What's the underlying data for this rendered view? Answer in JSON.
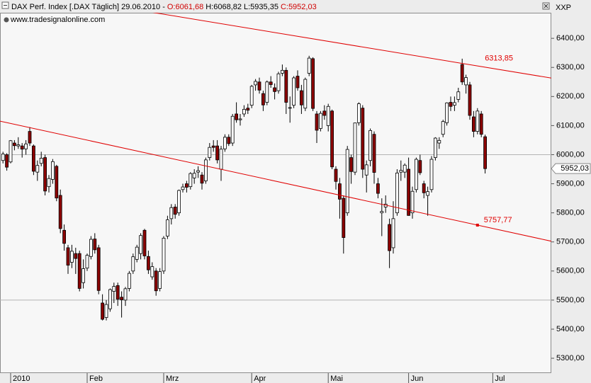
{
  "header": {
    "instrument": "DAX Perf. Index [.DAX  Täglich] 29.06.2010 -",
    "open": "O:6061,68",
    "high": "H:6068,82",
    "low": "L:5935,35",
    "close": "C:5952,03",
    "source": "www.tradesignalonline.com",
    "axis_label": "XXP"
  },
  "chart_data": {
    "type": "candlestick",
    "categories": [
      null,
      null,
      "2010",
      null,
      null,
      null,
      null,
      null,
      null,
      null,
      null,
      null,
      null,
      null,
      null,
      null,
      null,
      null,
      null,
      null,
      null,
      null,
      "Feb",
      null,
      null,
      null,
      null,
      null,
      null,
      null,
      null,
      null,
      null,
      null,
      null,
      null,
      null,
      null,
      null,
      null,
      null,
      null,
      "Mrz",
      null,
      null,
      null,
      null,
      null,
      null,
      null,
      null,
      null,
      null,
      null,
      null,
      null,
      null,
      null,
      null,
      null,
      null,
      null,
      null,
      null,
      null,
      "Apr",
      null,
      null,
      null,
      null,
      null,
      null,
      null,
      null,
      null,
      null,
      null,
      null,
      null,
      null,
      null,
      null,
      null,
      null,
      null,
      "Mai",
      null,
      null,
      null,
      null,
      null,
      null,
      null,
      null,
      null,
      null,
      null,
      null,
      null,
      null,
      null,
      null,
      null,
      null,
      null,
      null,
      "Jun",
      null,
      null,
      null,
      null,
      null,
      null,
      null,
      null,
      null,
      null,
      null,
      null,
      null,
      null,
      null,
      null,
      null,
      null,
      null,
      null,
      null,
      "Jul"
    ],
    "open": [
      5980,
      6000,
      5975,
      6040,
      6030,
      6030,
      6020,
      6080,
      6030,
      5940,
      5970,
      5990,
      5890,
      5915,
      5960,
      5860,
      5740,
      5680,
      5630,
      5660,
      5660,
      5560,
      5610,
      5650,
      5710,
      5680,
      5490,
      5440,
      5470,
      5530,
      5550,
      5510,
      5500,
      5540,
      5600,
      5640,
      5660,
      5740,
      5650,
      5580,
      5600,
      5540,
      5600,
      5720,
      5780,
      5820,
      5800,
      5880,
      5900,
      5890,
      5920,
      5940,
      5930,
      5910,
      5990,
      6030,
      6030,
      5950,
      6020,
      6060,
      6040,
      6140,
      6120,
      6140,
      6160,
      6170,
      6240,
      6250,
      6210,
      6180,
      6250,
      6230,
      6220,
      6280,
      6290,
      6160,
      6170,
      6270,
      6220,
      6160,
      6280,
      6330,
      6140,
      6090,
      6150,
      6100,
      6150,
      5950,
      5900,
      5850,
      5800,
      5990,
      5940,
      6110,
      6160,
      5930,
      5980,
      6070,
      5900,
      5800,
      5820,
      5760,
      5680,
      5800,
      5940,
      5940,
      5950,
      5800,
      5880,
      5980,
      5900,
      5860,
      5880,
      5990,
      6040,
      6070,
      6110,
      6180,
      6170,
      6190,
      6310,
      6240,
      6240,
      6130,
      6080,
      6140,
      6061.68,
      null,
      null
    ],
    "high": [
      6010,
      6005,
      6050,
      6050,
      6060,
      6040,
      6050,
      6095,
      6035,
      5980,
      6010,
      6000,
      5930,
      5985,
      5965,
      5880,
      5760,
      5690,
      5690,
      5680,
      5670,
      5640,
      5660,
      5720,
      5730,
      5690,
      5520,
      5500,
      5540,
      5560,
      5560,
      5530,
      5545,
      5600,
      5660,
      5690,
      5730,
      5745,
      5670,
      5630,
      5610,
      5610,
      5720,
      5790,
      5830,
      5830,
      5880,
      5900,
      5910,
      5940,
      5950,
      5960,
      5940,
      5990,
      6040,
      6050,
      6050,
      6030,
      6070,
      6070,
      6140,
      6180,
      6140,
      6170,
      6175,
      6240,
      6260,
      6265,
      6220,
      6255,
      6270,
      6245,
      6285,
      6310,
      6300,
      6200,
      6270,
      6290,
      6240,
      6265,
      6340,
      6335,
      6150,
      6150,
      6170,
      6175,
      6155,
      5960,
      5920,
      5860,
      6030,
      6000,
      6110,
      6180,
      6170,
      5980,
      6090,
      6080,
      5920,
      5850,
      5860,
      5780,
      5840,
      5950,
      5980,
      5970,
      5990,
      5890,
      5990,
      6000,
      5910,
      5890,
      5995,
      6060,
      6060,
      6120,
      6180,
      6200,
      6200,
      6230,
      6330,
      6275,
      6250,
      6150,
      6160,
      6150,
      6068.82,
      null,
      null
    ],
    "low": [
      5970,
      5945,
      5970,
      6015,
      6020,
      5990,
      6000,
      6030,
      5930,
      5910,
      5960,
      5860,
      5870,
      5900,
      5840,
      5730,
      5670,
      5590,
      5610,
      5590,
      5530,
      5540,
      5600,
      5640,
      5660,
      5520,
      5430,
      5430,
      5460,
      5490,
      5480,
      5440,
      5480,
      5530,
      5590,
      5630,
      5640,
      5640,
      5590,
      5570,
      5515,
      5530,
      5590,
      5710,
      5760,
      5780,
      5790,
      5870,
      5870,
      5880,
      5900,
      5920,
      5880,
      5900,
      5980,
      6010,
      5970,
      5910,
      6010,
      6030,
      6030,
      6110,
      6100,
      6130,
      6140,
      6160,
      6220,
      6210,
      6150,
      6170,
      6230,
      6190,
      6210,
      6270,
      6140,
      6110,
      6160,
      6220,
      6140,
      6150,
      6270,
      6150,
      6040,
      6080,
      6120,
      6080,
      5950,
      5880,
      5780,
      5660,
      5790,
      5900,
      5930,
      6100,
      5920,
      5870,
      5960,
      5900,
      5850,
      5720,
      5800,
      5610,
      5660,
      5790,
      5910,
      5920,
      5790,
      5780,
      5870,
      5930,
      5850,
      5790,
      5870,
      5980,
      6020,
      6060,
      6100,
      6150,
      6150,
      6180,
      6240,
      6210,
      6120,
      6060,
      6070,
      6060,
      5935.35,
      null,
      null
    ],
    "close": [
      6002,
      5957,
      6048,
      6031,
      6034,
      6019,
      6037,
      6040,
      5943,
      5963,
      5988,
      5875,
      5918,
      5976,
      5851,
      5746,
      5695,
      5620,
      5668,
      5643,
      5540,
      5608,
      5654,
      5709,
      5673,
      5533,
      5434,
      5485,
      5536,
      5547,
      5503,
      5501,
      5539,
      5592,
      5649,
      5682,
      5722,
      5652,
      5604,
      5615,
      5532,
      5598,
      5713,
      5776,
      5818,
      5795,
      5877,
      5889,
      5888,
      5935,
      5936,
      5945,
      5902,
      5982,
      6025,
      6025,
      5982,
      6019,
      6060,
      6038,
      6132,
      6120,
      6123,
      6156,
      6153,
      6235,
      6252,
      6222,
      6171,
      6250,
      6241,
      6217,
      6278,
      6290,
      6180,
      6162,
      6264,
      6230,
      6171,
      6259,
      6332,
      6159,
      6084,
      6142,
      6135,
      6166,
      5958,
      5908,
      5847,
      5715,
      6018,
      5942,
      6109,
      6175,
      5950,
      5965,
      6083,
      5939,
      5867,
      5805,
      5830,
      5670,
      5780,
      5937,
      5946,
      5964,
      5791,
      5874,
      5984,
      5938,
      5869,
      5873,
      5984,
      6057,
      6049,
      6114,
      6178,
      6166,
      6179,
      6216,
      6250,
      6265,
      6135,
      6080,
      6150,
      6070,
      5952.03,
      null,
      null
    ],
    "up_color": "#ffffff",
    "down_color": "#8b0000",
    "ylim": [
      5249,
      6488
    ],
    "yticks": [
      {
        "value": 5300,
        "label": "5300,00"
      },
      {
        "value": 5400,
        "label": "5400,00"
      },
      {
        "value": 5500,
        "label": "5500,00"
      },
      {
        "value": 5600,
        "label": "5600,00"
      },
      {
        "value": 5700,
        "label": "5700,00"
      },
      {
        "value": 5800,
        "label": "5800,00"
      },
      {
        "value": 5900,
        "label": "5900,00"
      },
      {
        "value": 6000,
        "label": "6000,00"
      },
      {
        "value": 6100,
        "label": "6100,00"
      },
      {
        "value": 6200,
        "label": "6200,00"
      },
      {
        "value": 6300,
        "label": "6300,00"
      },
      {
        "value": 6400,
        "label": "6400,00"
      }
    ],
    "grid": [
      5500,
      6000
    ],
    "last_price": {
      "value": 5952.03,
      "label": "5952,03"
    },
    "trendlines": [
      {
        "color": "#e00000",
        "anchor": {
          "x": 120,
          "value": 6313.85,
          "label": "6313,85"
        },
        "through": {
          "x": 143,
          "value": 6264
        }
      },
      {
        "color": "#e00000",
        "anchor": {
          "x": 124,
          "value": 5757.77,
          "label": "5757,77"
        },
        "through": {
          "x": 0,
          "value": 6113
        },
        "marker": true
      }
    ]
  }
}
